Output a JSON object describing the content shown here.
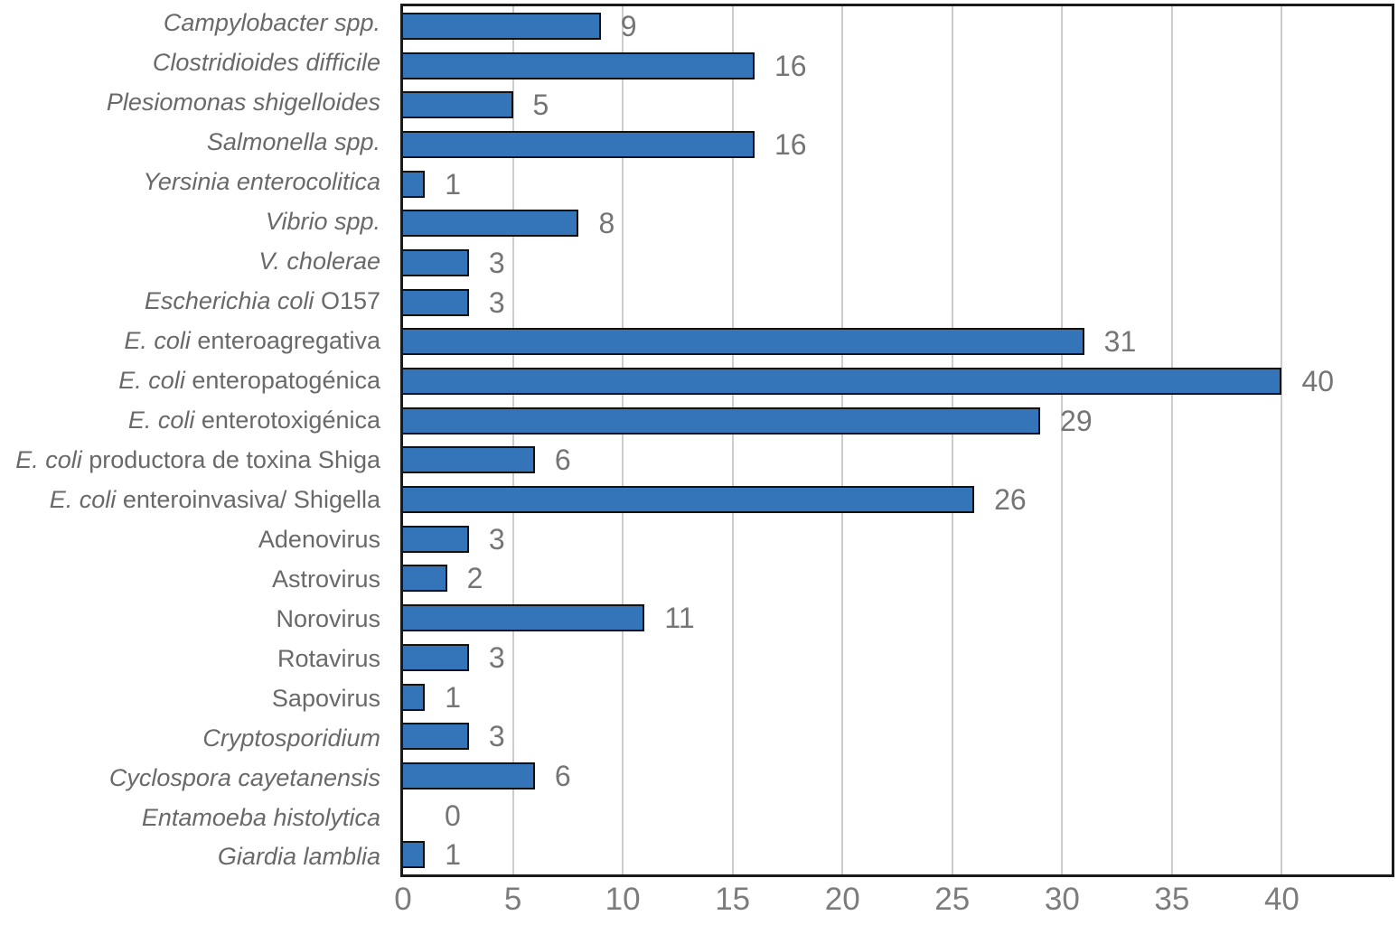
{
  "chart_data": {
    "type": "bar",
    "orientation": "horizontal",
    "title": "",
    "xlabel": "",
    "ylabel": "",
    "xlim": [
      0,
      45
    ],
    "x_ticks": [
      0,
      5,
      10,
      15,
      20,
      25,
      30,
      35,
      40
    ],
    "grid": "vertical",
    "legend": "none",
    "bar_color": "#3474B8",
    "bar_border_color": "#111111",
    "gridline_color": "#cccccc",
    "label_color": "#696969",
    "value_label_color": "#757575",
    "tick_label_color": "#7c7c7c",
    "categories": [
      "Campylobacter spp.",
      "Clostridioides difficile",
      "Plesiomonas shigelloides",
      "Salmonella spp.",
      "Yersinia enterocolitica",
      "Vibrio spp.",
      "V. cholerae",
      "Escherichia coli O157",
      "E. coli enteroagregativa",
      "E. coli enteropatogénica",
      "E. coli enterotoxigénica",
      "E. coli productora de toxina Shiga",
      "E. coli enteroinvasiva/ Shigella",
      "Adenovirus",
      "Astrovirus",
      "Norovirus",
      "Rotavirus",
      "Sapovirus",
      "Cryptosporidium",
      "Cyclospora cayetanensis",
      "Entamoeba histolytica",
      "Giardia lamblia"
    ],
    "values": [
      9,
      16,
      5,
      16,
      1,
      8,
      3,
      3,
      31,
      40,
      29,
      6,
      26,
      3,
      2,
      11,
      3,
      1,
      3,
      6,
      0,
      1
    ],
    "rows": [
      {
        "value": 9,
        "label_parts": [
          {
            "text": "Campylobacter spp.",
            "italic": true
          }
        ]
      },
      {
        "value": 16,
        "label_parts": [
          {
            "text": "Clostridioides difficile",
            "italic": true
          }
        ]
      },
      {
        "value": 5,
        "label_parts": [
          {
            "text": "Plesiomonas shigelloides",
            "italic": true
          }
        ]
      },
      {
        "value": 16,
        "label_parts": [
          {
            "text": "Salmonella spp.",
            "italic": true
          }
        ]
      },
      {
        "value": 1,
        "label_parts": [
          {
            "text": "Yersinia enterocolitica",
            "italic": true
          }
        ]
      },
      {
        "value": 8,
        "label_parts": [
          {
            "text": "Vibrio spp.",
            "italic": true
          }
        ]
      },
      {
        "value": 3,
        "label_parts": [
          {
            "text": "V. cholerae",
            "italic": true
          }
        ]
      },
      {
        "value": 3,
        "label_parts": [
          {
            "text": "Escherichia coli",
            "italic": true
          },
          {
            "text": " O157",
            "italic": false
          }
        ]
      },
      {
        "value": 31,
        "label_parts": [
          {
            "text": "E. coli",
            "italic": true
          },
          {
            "text": " enteroagregativa",
            "italic": false
          }
        ]
      },
      {
        "value": 40,
        "label_parts": [
          {
            "text": "E. coli",
            "italic": true
          },
          {
            "text": " enteropatogénica",
            "italic": false
          }
        ]
      },
      {
        "value": 29,
        "label_parts": [
          {
            "text": "E. coli",
            "italic": true
          },
          {
            "text": " enterotoxigénica",
            "italic": false
          }
        ]
      },
      {
        "value": 6,
        "label_parts": [
          {
            "text": "E. coli",
            "italic": true
          },
          {
            "text": " productora de toxina Shiga",
            "italic": false
          }
        ]
      },
      {
        "value": 26,
        "label_parts": [
          {
            "text": "E. coli",
            "italic": true
          },
          {
            "text": " enteroinvasiva/ Shigella",
            "italic": false
          }
        ]
      },
      {
        "value": 3,
        "label_parts": [
          {
            "text": "Adenovirus",
            "italic": false
          }
        ]
      },
      {
        "value": 2,
        "label_parts": [
          {
            "text": "Astrovirus",
            "italic": false
          }
        ]
      },
      {
        "value": 11,
        "label_parts": [
          {
            "text": "Norovirus",
            "italic": false
          }
        ]
      },
      {
        "value": 3,
        "label_parts": [
          {
            "text": "Rotavirus",
            "italic": false
          }
        ]
      },
      {
        "value": 1,
        "label_parts": [
          {
            "text": "Sapovirus",
            "italic": false
          }
        ]
      },
      {
        "value": 3,
        "label_parts": [
          {
            "text": "Cryptosporidium",
            "italic": true
          }
        ]
      },
      {
        "value": 6,
        "label_parts": [
          {
            "text": "Cyclospora cayetanensis",
            "italic": true
          }
        ]
      },
      {
        "value": 0,
        "label_parts": [
          {
            "text": "Entamoeba histolytica",
            "italic": true
          }
        ]
      },
      {
        "value": 1,
        "label_parts": [
          {
            "text": "Giardia lamblia",
            "italic": true
          }
        ]
      }
    ]
  }
}
